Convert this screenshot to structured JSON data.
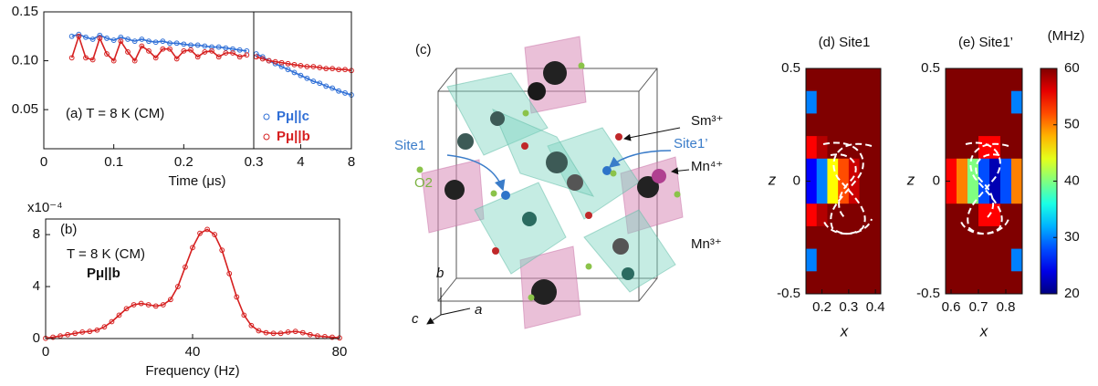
{
  "chart_data": [
    {
      "type": "scatter",
      "annotation": "(a) T = 8 K (CM)",
      "xlabel": "Time (μs)",
      "xlim": [
        0,
        0.3
      ],
      "xticks": [
        0,
        0.1,
        0.2
      ],
      "ylim": [
        0.01,
        0.15
      ],
      "yticks": [
        0.05,
        {
          "value": 0.1,
          "label": "0.10"
        },
        0.15
      ],
      "x": [
        0.04,
        0.05,
        0.06,
        0.07,
        0.08,
        0.09,
        0.1,
        0.11,
        0.12,
        0.13,
        0.14,
        0.15,
        0.16,
        0.17,
        0.18,
        0.19,
        0.2,
        0.21,
        0.22,
        0.23,
        0.24,
        0.25,
        0.26,
        0.27,
        0.28,
        0.29
      ],
      "series": [
        {
          "name": "Pμ||c",
          "color": "#2f6fd6",
          "values": [
            0.125,
            0.127,
            0.124,
            0.122,
            0.126,
            0.123,
            0.121,
            0.124,
            0.122,
            0.12,
            0.122,
            0.12,
            0.119,
            0.12,
            0.118,
            0.118,
            0.117,
            0.116,
            0.116,
            0.115,
            0.114,
            0.114,
            0.113,
            0.112,
            0.111,
            0.11
          ]
        },
        {
          "name": "Pμ||b",
          "color": "#d62020",
          "values": [
            0.103,
            0.125,
            0.103,
            0.101,
            0.123,
            0.107,
            0.1,
            0.12,
            0.109,
            0.1,
            0.115,
            0.11,
            0.103,
            0.112,
            0.112,
            0.102,
            0.11,
            0.111,
            0.104,
            0.109,
            0.11,
            0.104,
            0.108,
            0.108,
            0.104,
            0.106
          ]
        }
      ]
    },
    {
      "type": "scatter",
      "xlim": [
        0.3,
        8
      ],
      "xticks": [
        0.3,
        4,
        8
      ],
      "ylim": [
        0.01,
        0.15
      ],
      "x": [
        0.5,
        1,
        1.5,
        2,
        2.5,
        3,
        3.5,
        4,
        4.5,
        5,
        5.5,
        6,
        6.5,
        7,
        7.5,
        8
      ],
      "series": [
        {
          "color": "#2f6fd6",
          "values": [
            0.107,
            0.104,
            0.1,
            0.097,
            0.094,
            0.091,
            0.088,
            0.085,
            0.082,
            0.079,
            0.077,
            0.074,
            0.072,
            0.069,
            0.067,
            0.065
          ]
        },
        {
          "color": "#d62020",
          "values": [
            0.104,
            0.102,
            0.1,
            0.099,
            0.098,
            0.097,
            0.096,
            0.095,
            0.094,
            0.094,
            0.093,
            0.092,
            0.092,
            0.091,
            0.091,
            0.09
          ]
        }
      ]
    },
    {
      "type": "line",
      "annotations": [
        "(b)",
        "T = 8 K (CM)",
        "Pμ||b"
      ],
      "multiplier": "x10⁻⁴",
      "xlabel": "Frequency (Hz)",
      "xlim": [
        0,
        80
      ],
      "xticks": [
        0,
        40,
        80
      ],
      "ylim": [
        0,
        9.2
      ],
      "yticks": [
        0,
        4,
        8
      ],
      "x": [
        0,
        2,
        4,
        6,
        8,
        10,
        12,
        14,
        16,
        18,
        20,
        22,
        24,
        26,
        28,
        30,
        32,
        34,
        36,
        38,
        40,
        42,
        44,
        46,
        48,
        50,
        52,
        54,
        56,
        58,
        60,
        62,
        64,
        66,
        68,
        70,
        72,
        74,
        76,
        78,
        80
      ],
      "series": [
        {
          "color": "#d62020",
          "values": [
            0.02,
            0.1,
            0.2,
            0.3,
            0.4,
            0.5,
            0.55,
            0.65,
            0.9,
            1.3,
            1.8,
            2.3,
            2.6,
            2.7,
            2.6,
            2.5,
            2.6,
            3.0,
            4.0,
            5.5,
            7.0,
            8.1,
            8.4,
            8.0,
            6.8,
            5.0,
            3.2,
            1.8,
            1.0,
            0.6,
            0.45,
            0.4,
            0.4,
            0.5,
            0.55,
            0.45,
            0.3,
            0.2,
            0.15,
            0.1,
            0.05
          ]
        }
      ]
    },
    {
      "type": "heatmap",
      "title": "(d) Site1",
      "xlabel": "x",
      "ylabel": "z",
      "xlim": [
        0.14,
        0.42
      ],
      "xticks": [
        0.2,
        0.3,
        0.4
      ],
      "ylim": [
        -0.5,
        0.5
      ],
      "yticks": [
        -0.5,
        0,
        0.5
      ],
      "x": [
        0.16,
        0.2,
        0.24,
        0.28,
        0.32,
        0.36,
        0.4
      ],
      "y": [
        0.45,
        0.35,
        0.25,
        0.15,
        0.05,
        -0.05,
        -0.15,
        -0.25,
        -0.35,
        -0.45
      ],
      "values": [
        [
          60,
          60,
          60,
          60,
          60,
          60,
          60
        ],
        [
          30,
          60,
          60,
          60,
          60,
          60,
          60
        ],
        [
          60,
          60,
          60,
          60,
          60,
          60,
          60
        ],
        [
          55,
          58,
          60,
          60,
          60,
          60,
          60
        ],
        [
          25,
          30,
          45,
          52,
          57,
          60,
          60
        ],
        [
          25,
          30,
          45,
          52,
          57,
          60,
          60
        ],
        [
          55,
          58,
          60,
          60,
          60,
          60,
          60
        ],
        [
          60,
          60,
          60,
          60,
          60,
          60,
          60
        ],
        [
          30,
          60,
          60,
          60,
          60,
          60,
          60
        ],
        [
          60,
          60,
          60,
          60,
          60,
          60,
          60
        ]
      ]
    },
    {
      "type": "heatmap",
      "title": "(e) Site1’",
      "xlabel": "x",
      "ylabel": "z",
      "xlim": [
        0.58,
        0.86
      ],
      "xticks": [
        0.6,
        0.7,
        0.8
      ],
      "ylim": [
        -0.5,
        0.5
      ],
      "yticks": [
        -0.5,
        0,
        0.5
      ],
      "x": [
        0.6,
        0.64,
        0.68,
        0.72,
        0.76,
        0.8,
        0.84
      ],
      "y": [
        0.45,
        0.35,
        0.25,
        0.15,
        0.05,
        -0.05,
        -0.15,
        -0.25,
        -0.35,
        -0.45
      ],
      "values": [
        [
          60,
          60,
          60,
          60,
          60,
          60,
          60
        ],
        [
          60,
          60,
          60,
          60,
          60,
          60,
          30
        ],
        [
          60,
          60,
          60,
          60,
          60,
          60,
          60
        ],
        [
          60,
          60,
          60,
          55,
          55,
          60,
          60
        ],
        [
          55,
          50,
          40,
          28,
          22,
          28,
          50
        ],
        [
          55,
          50,
          40,
          28,
          22,
          28,
          50
        ],
        [
          60,
          60,
          60,
          55,
          55,
          60,
          60
        ],
        [
          60,
          60,
          60,
          60,
          60,
          60,
          60
        ],
        [
          60,
          60,
          60,
          60,
          60,
          60,
          30
        ],
        [
          60,
          60,
          60,
          60,
          60,
          60,
          60
        ]
      ]
    }
  ],
  "colorbar": {
    "label": "(MHz)",
    "lim": [
      20,
      60
    ],
    "ticks": [
      20,
      30,
      40,
      50,
      60
    ]
  },
  "structure": {
    "panel": "(c)",
    "labels": [
      "Sm³⁺",
      "Site1",
      "Site1’",
      "Mn⁴⁺",
      "O2",
      "Mn³⁺"
    ],
    "axes": [
      "b",
      "c",
      "a"
    ]
  }
}
